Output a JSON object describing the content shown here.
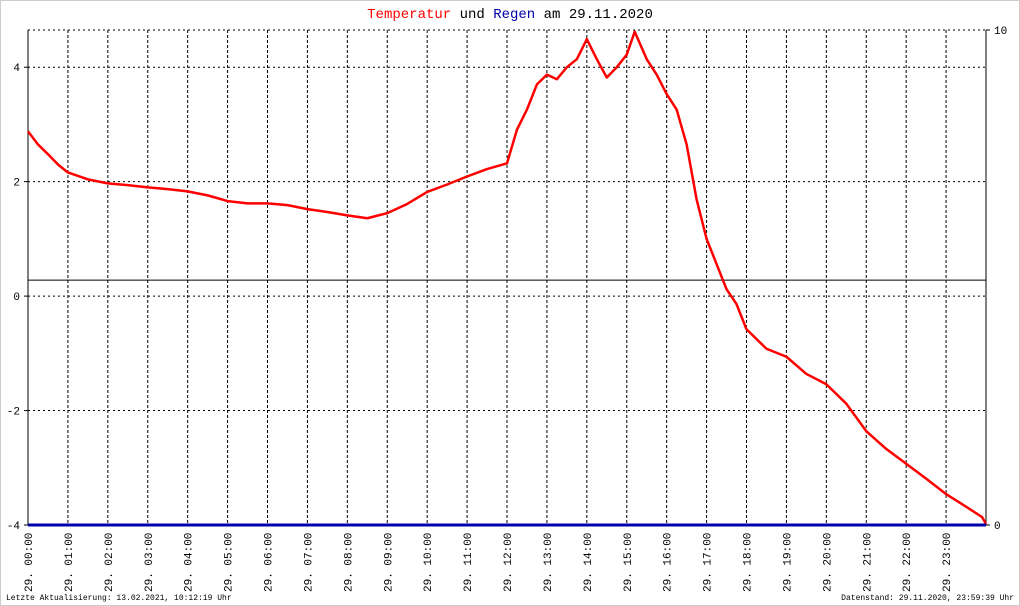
{
  "chart_data": {
    "type": "line",
    "title_connector": "und",
    "title_suffix": "am 29.11.2020",
    "footer_left": "Letzte Aktualisierung: 13.02.2021, 10:12:19 Uhr",
    "footer_right": "Datenstand: 29.11.2020, 23:59:39 Uhr",
    "xlim": [
      0,
      24
    ],
    "xticks": [
      {
        "value": 0,
        "label": "29. 00:00"
      },
      {
        "value": 1,
        "label": "29. 01:00"
      },
      {
        "value": 2,
        "label": "29. 02:00"
      },
      {
        "value": 3,
        "label": "29. 03:00"
      },
      {
        "value": 4,
        "label": "29. 04:00"
      },
      {
        "value": 5,
        "label": "29. 05:00"
      },
      {
        "value": 6,
        "label": "29. 06:00"
      },
      {
        "value": 7,
        "label": "29. 07:00"
      },
      {
        "value": 8,
        "label": "29. 08:00"
      },
      {
        "value": 9,
        "label": "29. 09:00"
      },
      {
        "value": 10,
        "label": "29. 10:00"
      },
      {
        "value": 11,
        "label": "29. 11:00"
      },
      {
        "value": 12,
        "label": "29. 12:00"
      },
      {
        "value": 13,
        "label": "29. 13:00"
      },
      {
        "value": 14,
        "label": "29. 14:00"
      },
      {
        "value": 15,
        "label": "29. 15:00"
      },
      {
        "value": 16,
        "label": "29. 16:00"
      },
      {
        "value": 17,
        "label": "29. 17:00"
      },
      {
        "value": 18,
        "label": "29. 18:00"
      },
      {
        "value": 19,
        "label": "29. 19:00"
      },
      {
        "value": 20,
        "label": "29. 20:00"
      },
      {
        "value": 21,
        "label": "29. 21:00"
      },
      {
        "value": 22,
        "label": "29. 22:00"
      },
      {
        "value": 23,
        "label": "29. 23:00"
      }
    ],
    "ylim": [
      -4,
      4.65
    ],
    "yticks": [
      -4,
      -2,
      0,
      2,
      4
    ],
    "y2lim": [
      0,
      10
    ],
    "y2ticks": [
      0,
      10
    ],
    "hline": 0.28,
    "grid": true,
    "series": [
      {
        "name": "Temperatur",
        "color": "#ff0000",
        "x": [
          0,
          0.25,
          0.5,
          0.75,
          1,
          1.5,
          2,
          2.5,
          3,
          3.5,
          4,
          4.5,
          5,
          5.5,
          6,
          6.5,
          7,
          7.5,
          8,
          8.5,
          9,
          9.5,
          10,
          10.5,
          11,
          11.5,
          12,
          12.25,
          12.5,
          12.75,
          13,
          13.25,
          13.5,
          13.75,
          14,
          14.25,
          14.5,
          14.75,
          15,
          15.2,
          15.5,
          15.75,
          16,
          16.25,
          16.5,
          16.75,
          17,
          17.25,
          17.5,
          17.75,
          18,
          18.5,
          19,
          19.5,
          20,
          20.5,
          21,
          21.5,
          22,
          22.5,
          23,
          23.5,
          23.9,
          24
        ],
        "values": [
          2.88,
          2.65,
          2.48,
          2.3,
          2.16,
          2.04,
          1.97,
          1.94,
          1.9,
          1.87,
          1.83,
          1.76,
          1.66,
          1.62,
          1.62,
          1.59,
          1.52,
          1.47,
          1.41,
          1.36,
          1.45,
          1.61,
          1.82,
          1.95,
          2.09,
          2.22,
          2.32,
          2.91,
          3.26,
          3.7,
          3.87,
          3.79,
          4.0,
          4.14,
          4.49,
          4.14,
          3.82,
          4.0,
          4.22,
          4.62,
          4.14,
          3.87,
          3.53,
          3.26,
          2.65,
          1.69,
          1.0,
          0.56,
          0.12,
          -0.14,
          -0.58,
          -0.92,
          -1.06,
          -1.36,
          -1.54,
          -1.88,
          -2.36,
          -2.67,
          -2.93,
          -3.19,
          -3.46,
          -3.68,
          -3.86,
          -3.98
        ]
      },
      {
        "name": "Regen",
        "color": "#0000aa",
        "axis": "y2",
        "x": [
          0,
          24
        ],
        "values": [
          0,
          0
        ]
      }
    ]
  }
}
